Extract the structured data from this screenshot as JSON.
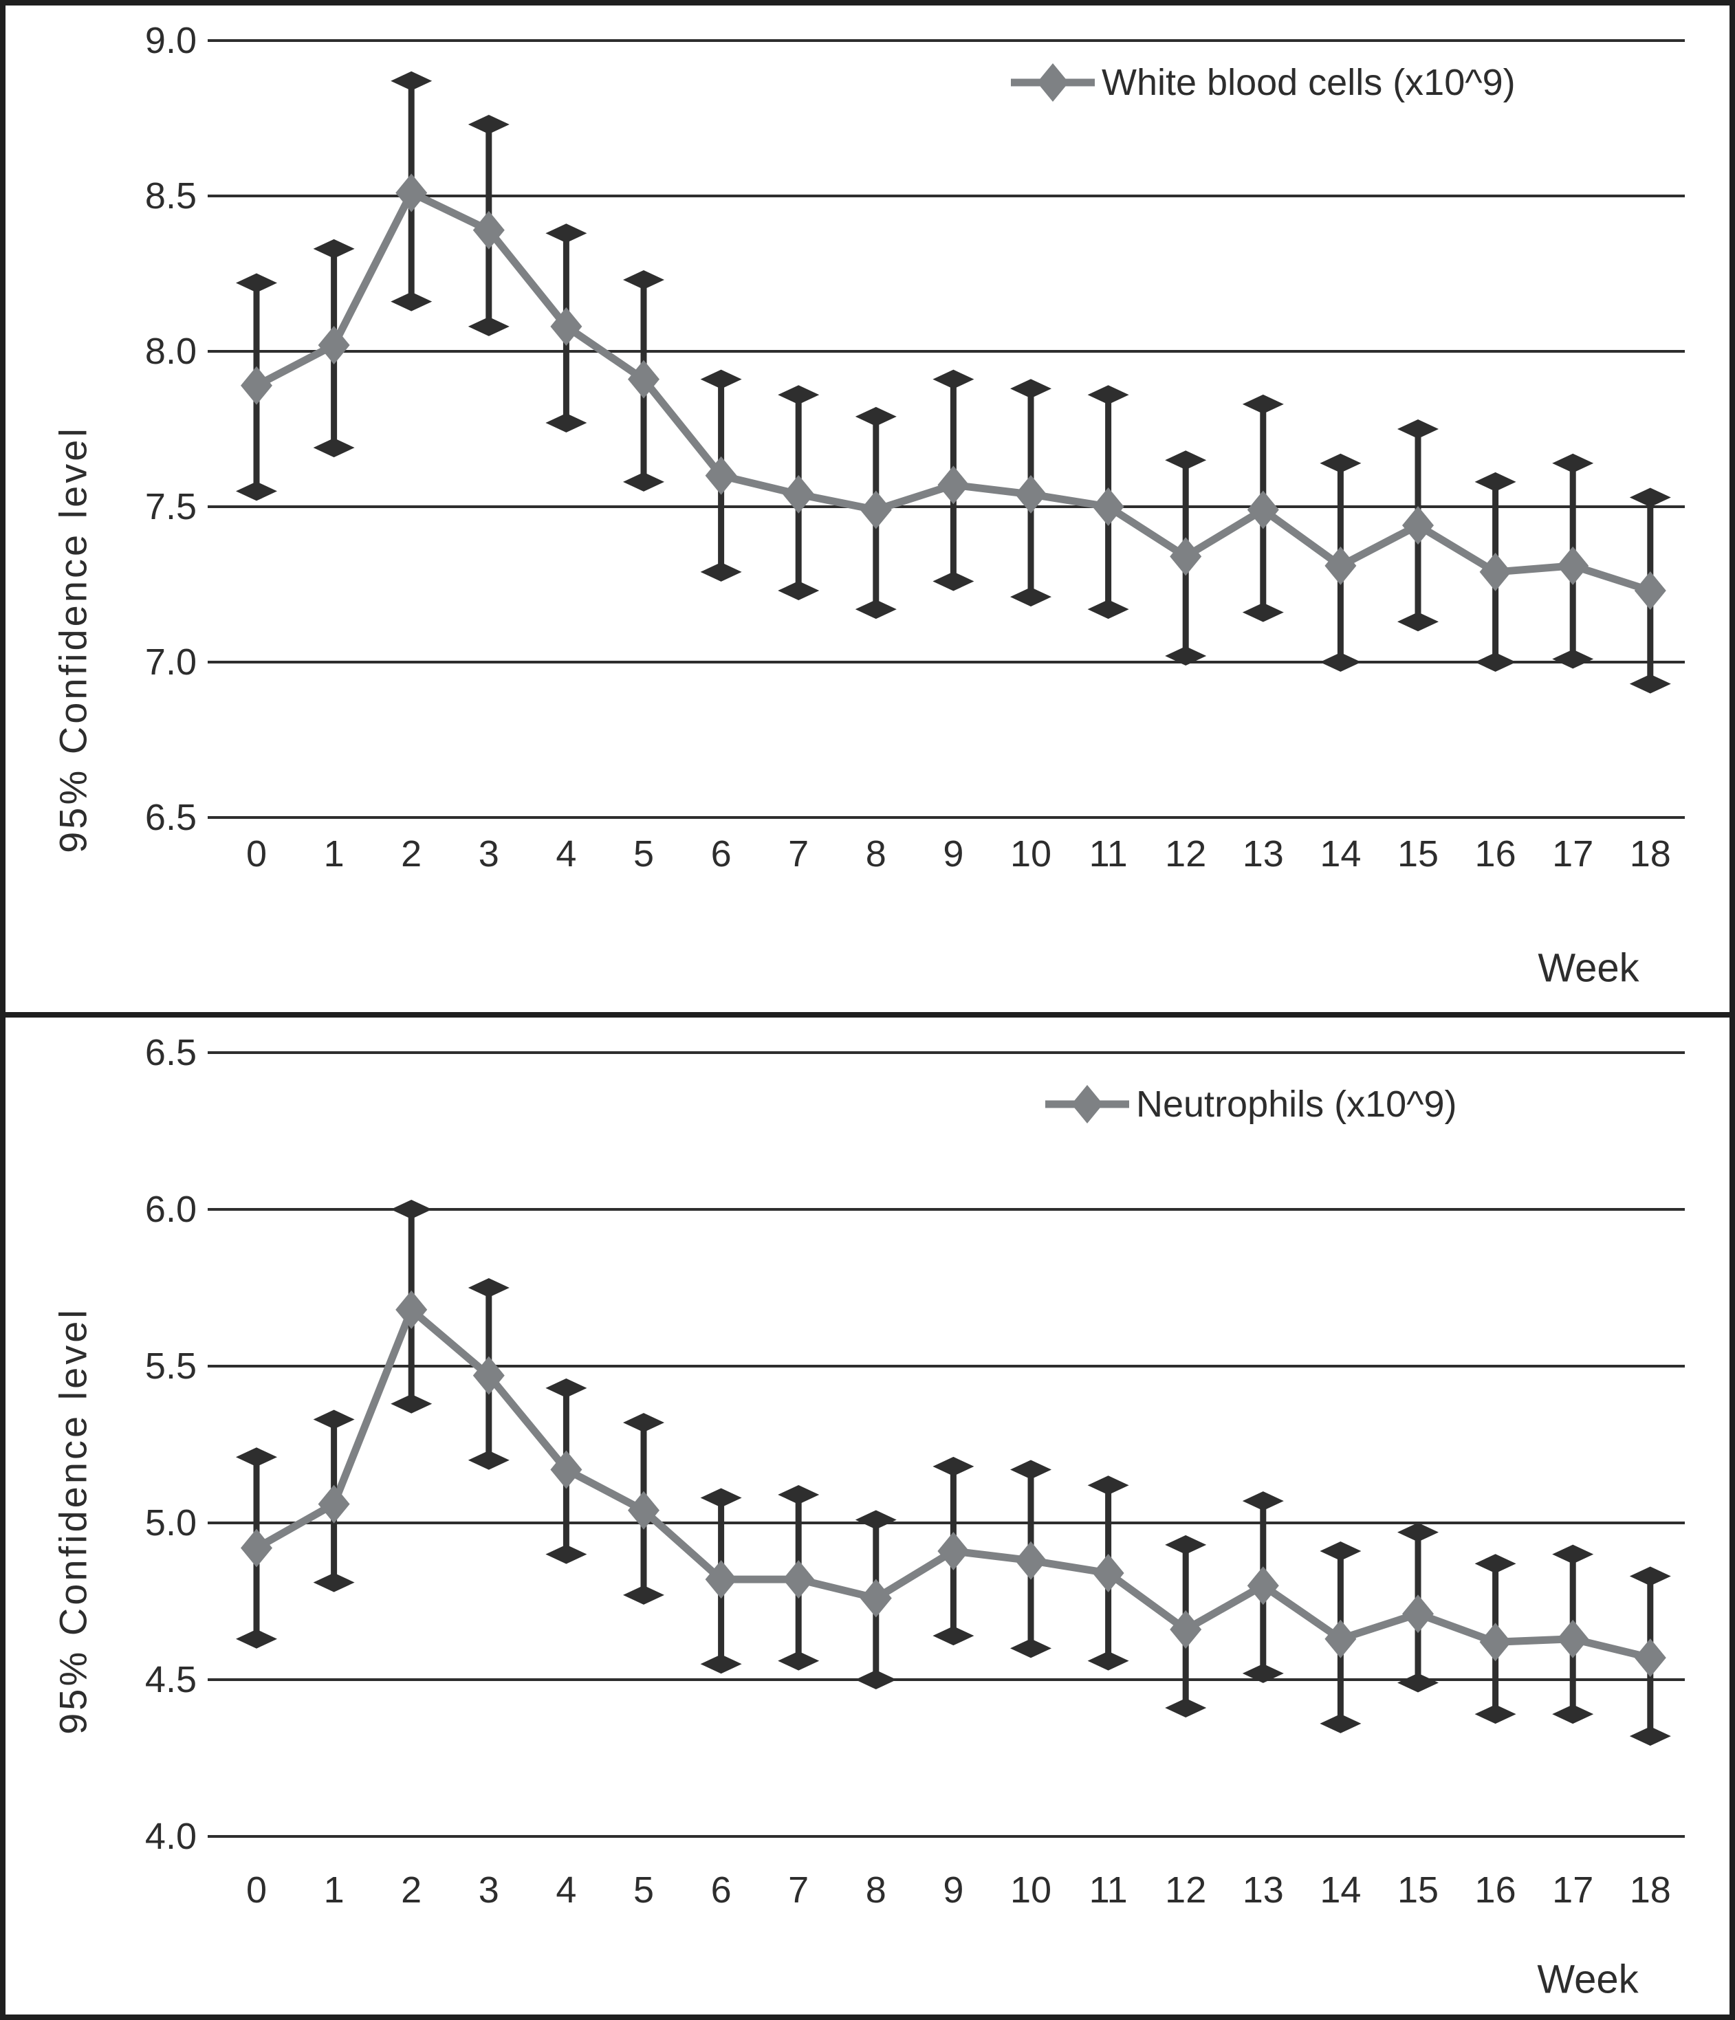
{
  "figure": {
    "type": "two-panel line chart figure with 95% confidence interval error bars",
    "panel_count": 2
  },
  "colors": {
    "background": "#ffffff",
    "border": "#1f1f1f",
    "grid": "#2e2e2e",
    "error_bar": "#2e2e2e",
    "series_line": "#7e8184",
    "text": "#2d2d2d"
  },
  "chart_data": [
    {
      "type": "line",
      "series_name": "White blood cells (x10^9)",
      "legend_label": "White blood cells (x10^9)",
      "legend_position": "top-right",
      "xlabel": "Week",
      "ylabel": "95% Confidence level",
      "error_bars": "95% confidence interval",
      "grid": true,
      "ylim": [
        6.5,
        9.0
      ],
      "yticks": [
        9.0,
        8.5,
        8.0,
        7.5,
        7.0,
        6.5
      ],
      "ytick_labels": [
        "9.0",
        "8.5",
        "8.0",
        "7.5",
        "7.0",
        "6.5"
      ],
      "x": [
        0,
        1,
        2,
        3,
        4,
        5,
        6,
        7,
        8,
        9,
        10,
        11,
        12,
        13,
        14,
        15,
        16,
        17,
        18
      ],
      "xtick_labels": [
        "0",
        "1",
        "2",
        "3",
        "4",
        "5",
        "6",
        "7",
        "8",
        "9",
        "10",
        "11",
        "12",
        "13",
        "14",
        "15",
        "16",
        "17",
        "18"
      ],
      "mean": [
        7.89,
        8.02,
        8.51,
        8.39,
        8.08,
        7.91,
        7.6,
        7.54,
        7.49,
        7.57,
        7.54,
        7.5,
        7.34,
        7.49,
        7.31,
        7.44,
        7.29,
        7.31,
        7.23
      ],
      "ci_low": [
        7.55,
        7.69,
        8.16,
        8.08,
        7.77,
        7.58,
        7.29,
        7.23,
        7.17,
        7.26,
        7.21,
        7.17,
        7.02,
        7.16,
        7.0,
        7.13,
        7.0,
        7.01,
        6.93
      ],
      "ci_high": [
        8.22,
        8.33,
        8.87,
        8.73,
        8.38,
        8.23,
        7.91,
        7.86,
        7.79,
        7.91,
        7.88,
        7.86,
        7.65,
        7.83,
        7.64,
        7.75,
        7.58,
        7.64,
        7.53
      ]
    },
    {
      "type": "line",
      "series_name": "Neutrophils (x10^9)",
      "legend_label": "Neutrophils (x10^9)",
      "legend_position": "top-right",
      "xlabel": "Week",
      "ylabel": "95% Confidence level",
      "error_bars": "95% confidence interval",
      "grid": true,
      "ylim": [
        4.0,
        6.5
      ],
      "yticks": [
        6.5,
        6.0,
        5.5,
        5.0,
        4.5,
        4.0
      ],
      "ytick_labels": [
        "6.5",
        "6.0",
        "5.5",
        "5.0",
        "4.5",
        "4.0"
      ],
      "x": [
        0,
        1,
        2,
        3,
        4,
        5,
        6,
        7,
        8,
        9,
        10,
        11,
        12,
        13,
        14,
        15,
        16,
        17,
        18
      ],
      "xtick_labels": [
        "0",
        "1",
        "2",
        "3",
        "4",
        "5",
        "6",
        "7",
        "8",
        "9",
        "10",
        "11",
        "12",
        "13",
        "14",
        "15",
        "16",
        "17",
        "18"
      ],
      "mean": [
        4.92,
        5.06,
        5.68,
        5.47,
        5.17,
        5.04,
        4.82,
        4.82,
        4.76,
        4.91,
        4.88,
        4.84,
        4.66,
        4.8,
        4.63,
        4.71,
        4.62,
        4.63,
        4.57
      ],
      "ci_low": [
        4.63,
        4.81,
        5.38,
        5.2,
        4.9,
        4.77,
        4.55,
        4.56,
        4.5,
        4.64,
        4.6,
        4.56,
        4.41,
        4.52,
        4.36,
        4.49,
        4.39,
        4.39,
        4.32
      ],
      "ci_high": [
        5.21,
        5.33,
        6.0,
        5.75,
        5.43,
        5.32,
        5.08,
        5.09,
        5.01,
        5.18,
        5.17,
        5.12,
        4.93,
        5.07,
        4.91,
        4.97,
        4.87,
        4.9,
        4.83
      ]
    }
  ]
}
